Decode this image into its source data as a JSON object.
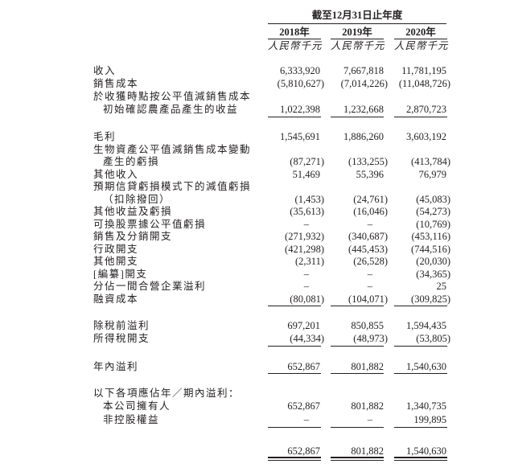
{
  "header": {
    "period": "截至12月31日止年度",
    "years": [
      "2018年",
      "2019年",
      "2020年"
    ],
    "unit": "人民幣千元"
  },
  "rows": [
    {
      "label": "收入",
      "values": [
        "6,333,920",
        "7,667,818",
        "11,781,195"
      ]
    },
    {
      "label": "銷售成本",
      "values": [
        "(5,810,627)",
        "(7,014,226)",
        "(11,048,726)"
      ]
    },
    {
      "label": "於收獲時點按公平值減銷售成本",
      "values": [
        "",
        "",
        ""
      ]
    },
    {
      "label": "初始確認農產品產生的收益",
      "indent": true,
      "values": [
        "1,022,398",
        "1,232,668",
        "2,870,723"
      ]
    },
    {
      "label": "毛利",
      "values": [
        "1,545,691",
        "1,886,260",
        "3,603,192"
      ]
    },
    {
      "label": "生物資產公平值減銷售成本變動",
      "values": [
        "",
        "",
        ""
      ]
    },
    {
      "label": "產生的虧損",
      "indent": true,
      "values": [
        "(87,271)",
        "(133,255)",
        "(413,784)"
      ]
    },
    {
      "label": "其他收入",
      "values": [
        "51,469",
        "55,396",
        "76,979"
      ]
    },
    {
      "label": "預期信貸虧損模式下的減值虧損",
      "values": [
        "",
        "",
        ""
      ]
    },
    {
      "label": "（扣除撥回）",
      "indent": true,
      "values": [
        "(1,453)",
        "(24,761)",
        "(45,083)"
      ]
    },
    {
      "label": "其他收益及虧損",
      "values": [
        "(35,613)",
        "(16,046)",
        "(54,273)"
      ]
    },
    {
      "label": "可換股票據公平值虧損",
      "values": [
        "–",
        "–",
        "(10,769)"
      ]
    },
    {
      "label": "銷售及分銷開支",
      "values": [
        "(271,932)",
        "(340,687)",
        "(453,116)"
      ]
    },
    {
      "label": "行政開支",
      "values": [
        "(421,298)",
        "(445,453)",
        "(744,516)"
      ]
    },
    {
      "label": "其他開支",
      "values": [
        "(2,311)",
        "(26,528)",
        "(20,030)"
      ]
    },
    {
      "label": "[編纂]開支",
      "values": [
        "–",
        "–",
        "(34,365)"
      ]
    },
    {
      "label": "分佔一間合營企業溢利",
      "values": [
        "–",
        "–",
        "25"
      ]
    },
    {
      "label": "融資成本",
      "values": [
        "(80,081)",
        "(104,071)",
        "(309,825)"
      ]
    },
    {
      "label": "除稅前溢利",
      "values": [
        "697,201",
        "850,855",
        "1,594,435"
      ]
    },
    {
      "label": "所得稅開支",
      "values": [
        "(44,334)",
        "(48,973)",
        "(53,805)"
      ]
    },
    {
      "label": "年內溢利",
      "values": [
        "652,867",
        "801,882",
        "1,540,630"
      ]
    },
    {
      "label": "以下各項應佔年／期內溢利：",
      "values": [
        "",
        "",
        ""
      ]
    },
    {
      "label": "本公司擁有人",
      "indent": true,
      "values": [
        "652,867",
        "801,882",
        "1,340,735"
      ]
    },
    {
      "label": "非控股權益",
      "indent": true,
      "values": [
        "–",
        "–",
        "199,895"
      ]
    },
    {
      "label": "",
      "values": [
        "652,867",
        "801,882",
        "1,540,630"
      ]
    }
  ]
}
